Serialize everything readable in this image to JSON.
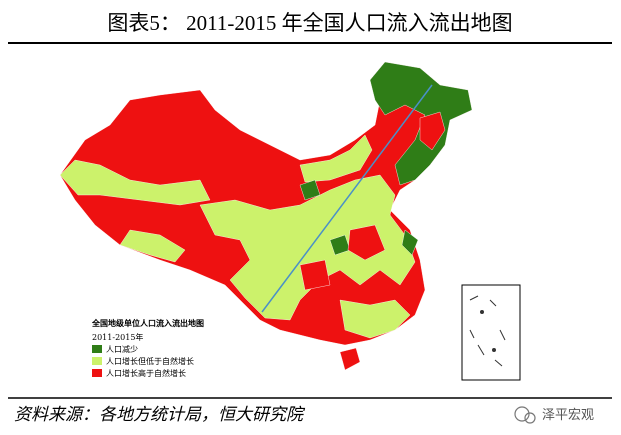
{
  "title": "图表5： 2011-2015 年全国人口流入流出地图",
  "map": {
    "legend": {
      "title": "全国地级单位人口流入流出地图",
      "subtitle": "2011-2015年",
      "items": [
        {
          "label": "人口减少",
          "color": "#2f7d17"
        },
        {
          "label": "人口增长但低于自然增长",
          "color": "#ccf26b"
        },
        {
          "label": "人口增长高于自然增长",
          "color": "#ee1111"
        }
      ]
    }
  },
  "source": "资料来源：各地方统计局，恒大研究院",
  "watermark": "泽平宏观"
}
